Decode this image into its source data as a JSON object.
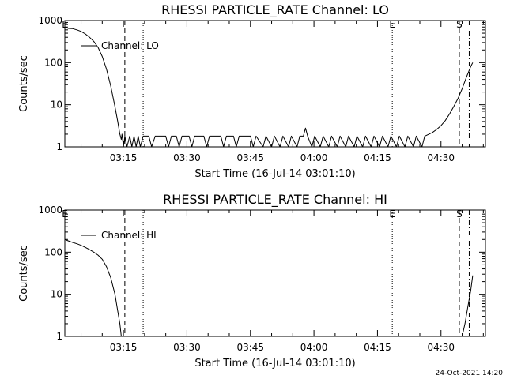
{
  "footer": {
    "timestamp": "24-Oct-2021 14:20"
  },
  "chart_data": [
    {
      "type": "line",
      "title": "RHESSI PARTICLE_RATE Channel: LO",
      "xlabel": "Start Time (16-Jul-14 03:01:10)",
      "ylabel": "Counts/sec",
      "y_scale": "log",
      "ylim": [
        1,
        1000
      ],
      "xlim": [
        "03:01:10",
        "04:40:30"
      ],
      "x_ticks": [
        "03:15",
        "03:30",
        "03:45",
        "04:00",
        "04:15",
        "04:30"
      ],
      "y_ticks": [
        "1",
        "10",
        "100",
        "1000"
      ],
      "legend": {
        "label": "Channel: LO",
        "placement": "top-left"
      },
      "markers": [
        {
          "label": "E",
          "time": "03:01:10",
          "style": "dotted"
        },
        {
          "label": "",
          "time": "03:15:20",
          "style": "dashed"
        },
        {
          "label": "",
          "time": "03:19:40",
          "style": "dotted"
        },
        {
          "label": "E",
          "time": "04:18:30",
          "style": "dotted"
        },
        {
          "label": "S",
          "time": "04:34:20",
          "style": "dashed"
        },
        {
          "label": "",
          "time": "04:36:40",
          "style": "dashdot"
        }
      ],
      "series": [
        {
          "name": "Channel: LO",
          "points": [
            [
              "03:01:10",
              700
            ],
            [
              "03:02:00",
              650
            ],
            [
              "03:03:00",
              640
            ],
            [
              "03:04:00",
              600
            ],
            [
              "03:05:00",
              550
            ],
            [
              "03:06:00",
              480
            ],
            [
              "03:07:00",
              400
            ],
            [
              "03:08:00",
              320
            ],
            [
              "03:09:00",
              230
            ],
            [
              "03:10:00",
              140
            ],
            [
              "03:11:00",
              70
            ],
            [
              "03:12:00",
              28
            ],
            [
              "03:13:00",
              9
            ],
            [
              "03:13:40",
              4
            ],
            [
              "03:14:10",
              2
            ],
            [
              "03:14:30",
              1.5
            ],
            [
              "03:14:40",
              2
            ],
            [
              "03:15:00",
              1
            ],
            [
              "03:15:20",
              1.8
            ],
            [
              "03:15:50",
              1
            ],
            [
              "03:16:30",
              1.8
            ],
            [
              "03:17:00",
              1
            ],
            [
              "03:17:30",
              1.8
            ],
            [
              "03:18:00",
              1
            ],
            [
              "03:18:30",
              1.8
            ],
            [
              "03:19:00",
              1
            ],
            [
              "03:19:40",
              1.8
            ],
            [
              "03:21:00",
              1.8
            ],
            [
              "03:21:40",
              1
            ],
            [
              "03:22:30",
              1.8
            ],
            [
              "03:25:00",
              1.8
            ],
            [
              "03:25:40",
              1
            ],
            [
              "03:26:20",
              1.8
            ],
            [
              "03:27:30",
              1.8
            ],
            [
              "03:28:10",
              1
            ],
            [
              "03:28:50",
              1.8
            ],
            [
              "03:30:30",
              1.8
            ],
            [
              "03:31:10",
              1
            ],
            [
              "03:31:50",
              1.8
            ],
            [
              "03:34:00",
              1.8
            ],
            [
              "03:34:40",
              1
            ],
            [
              "03:35:20",
              1.8
            ],
            [
              "03:38:00",
              1.8
            ],
            [
              "03:38:40",
              1
            ],
            [
              "03:39:20",
              1.8
            ],
            [
              "03:41:00",
              1.8
            ],
            [
              "03:41:40",
              1
            ],
            [
              "03:42:20",
              1.8
            ],
            [
              "03:45:00",
              1.8
            ],
            [
              "03:45:40",
              1
            ],
            [
              "03:46:20",
              1.8
            ],
            [
              "03:48:00",
              1
            ],
            [
              "03:48:40",
              1.8
            ],
            [
              "03:50:00",
              1
            ],
            [
              "03:50:40",
              1.8
            ],
            [
              "03:52:00",
              1
            ],
            [
              "03:52:40",
              1.8
            ],
            [
              "03:54:00",
              1
            ],
            [
              "03:54:40",
              1.8
            ],
            [
              "03:56:00",
              1
            ],
            [
              "03:56:40",
              1.8
            ],
            [
              "03:57:30",
              1.8
            ],
            [
              "03:58:00",
              2.8
            ],
            [
              "03:58:30",
              1.8
            ],
            [
              "03:59:30",
              1
            ],
            [
              "04:00:10",
              1.8
            ],
            [
              "04:01:30",
              1
            ],
            [
              "04:02:10",
              1.8
            ],
            [
              "04:03:30",
              1
            ],
            [
              "04:04:10",
              1.8
            ],
            [
              "04:05:30",
              1
            ],
            [
              "04:06:10",
              1.8
            ],
            [
              "04:07:30",
              1
            ],
            [
              "04:08:10",
              1.8
            ],
            [
              "04:09:30",
              1
            ],
            [
              "04:10:10",
              1.8
            ],
            [
              "04:11:30",
              1
            ],
            [
              "04:12:10",
              1.8
            ],
            [
              "04:13:30",
              1
            ],
            [
              "04:14:10",
              1.8
            ],
            [
              "04:15:30",
              1
            ],
            [
              "04:16:10",
              1.8
            ],
            [
              "04:17:30",
              1
            ],
            [
              "04:18:10",
              1.8
            ],
            [
              "04:19:30",
              1
            ],
            [
              "04:20:10",
              1.8
            ],
            [
              "04:21:30",
              1
            ],
            [
              "04:22:10",
              1.8
            ],
            [
              "04:23:30",
              1
            ],
            [
              "04:24:10",
              1.8
            ],
            [
              "04:25:30",
              1
            ],
            [
              "04:26:10",
              1.8
            ],
            [
              "04:27:10",
              2
            ],
            [
              "04:28:00",
              2.2
            ],
            [
              "04:29:00",
              2.6
            ],
            [
              "04:30:00",
              3.2
            ],
            [
              "04:31:00",
              4.2
            ],
            [
              "04:32:00",
              6
            ],
            [
              "04:33:00",
              9
            ],
            [
              "04:34:00",
              14
            ],
            [
              "04:35:00",
              24
            ],
            [
              "04:36:00",
              45
            ],
            [
              "04:37:00",
              80
            ],
            [
              "04:37:30",
              100
            ]
          ]
        }
      ]
    },
    {
      "type": "line",
      "title": "RHESSI PARTICLE_RATE Channel: HI",
      "xlabel": "Start Time (16-Jul-14 03:01:10)",
      "ylabel": "Counts/sec",
      "y_scale": "log",
      "ylim": [
        1,
        1000
      ],
      "xlim": [
        "03:01:10",
        "04:40:30"
      ],
      "x_ticks": [
        "03:15",
        "03:30",
        "03:45",
        "04:00",
        "04:15",
        "04:30"
      ],
      "y_ticks": [
        "1",
        "10",
        "100",
        "1000"
      ],
      "legend": {
        "label": "Channel: HI",
        "placement": "top-left"
      },
      "markers": [
        {
          "label": "E",
          "time": "03:01:10",
          "style": "dotted"
        },
        {
          "label": "",
          "time": "03:15:20",
          "style": "dashed"
        },
        {
          "label": "",
          "time": "03:19:40",
          "style": "dotted"
        },
        {
          "label": "E",
          "time": "04:18:30",
          "style": "dotted"
        },
        {
          "label": "S",
          "time": "04:34:20",
          "style": "dashed"
        },
        {
          "label": "",
          "time": "04:36:40",
          "style": "dashdot"
        }
      ],
      "series": [
        {
          "name": "Channel: HI",
          "points": [
            [
              "03:01:10",
              200
            ],
            [
              "03:02:00",
              185
            ],
            [
              "03:03:00",
              170
            ],
            [
              "03:04:00",
              158
            ],
            [
              "03:05:00",
              145
            ],
            [
              "03:06:00",
              130
            ],
            [
              "03:07:00",
              115
            ],
            [
              "03:08:00",
              100
            ],
            [
              "03:09:00",
              85
            ],
            [
              "03:10:00",
              68
            ],
            [
              "03:11:00",
              45
            ],
            [
              "03:12:00",
              25
            ],
            [
              "03:13:00",
              10
            ],
            [
              "03:13:40",
              4
            ],
            [
              "03:14:10",
              2
            ],
            [
              "03:14:30",
              1
            ]
          ]
        },
        {
          "name": "Channel: HI",
          "points": [
            [
              "04:35:00",
              1
            ],
            [
              "04:35:40",
              2
            ],
            [
              "04:36:20",
              5
            ],
            [
              "04:37:00",
              12
            ],
            [
              "04:37:30",
              28
            ]
          ]
        }
      ]
    }
  ]
}
